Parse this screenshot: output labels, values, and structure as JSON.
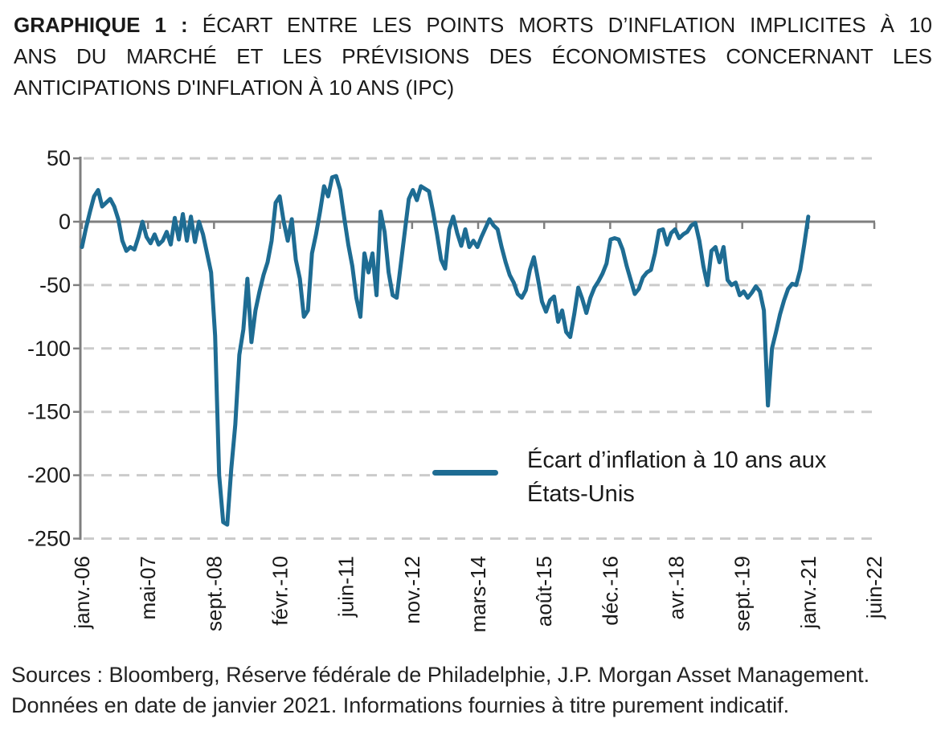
{
  "title": {
    "prefix": "GRAPHIQUE 1 :",
    "line1_rest": "ÉCART ENTRE LES POINTS MORTS D’INFLATION IMPLICITES À 10",
    "line2": "ANS DU MARCHÉ ET LES PRÉVISIONS DES ÉCONOMISTES CONCERNANT LES",
    "line3": "ANTICIPATIONS D'INFLATION À 10 ANS (IPC)"
  },
  "legend": {
    "label": "Écart d’inflation à 10 ans aux États-Unis"
  },
  "footer": {
    "line1": "Sources : Bloomberg, Réserve fédérale de Philadelphie, J.P. Morgan Asset Management.",
    "line2": "Données en date de janvier 2021. Informations fournies à titre purement indicatif."
  },
  "colors": {
    "line": "#1E6C93",
    "axis": "#7F7F7F",
    "gridline": "#CBCBCB",
    "text": "#1A1A1A"
  },
  "chart_data": {
    "type": "line",
    "title": "GRAPHIQUE 1 : Écart entre les points morts d’inflation implicites à 10 ans du marché et les prévisions des économistes concernant les anticipations d'inflation à 10 ans (IPC)",
    "series_name": "Écart d’inflation à 10 ans aux États-Unis",
    "x_start": "2006-01",
    "x_end": "2021-01",
    "x_frequency": "monthly",
    "x_tick_labels": [
      "janv.-06",
      "mai-07",
      "sept.-08",
      "févr.-10",
      "juin-11",
      "nov.-12",
      "mars-14",
      "août-15",
      "déc.-16",
      "avr.-18",
      "sept.-19",
      "janv.-21",
      "juin-22"
    ],
    "y_ticks": [
      50,
      0,
      -50,
      -100,
      -150,
      -200,
      -250
    ],
    "ylim": [
      -250,
      50
    ],
    "grid": "horizontal dashed, zero line solid",
    "legend_position": "inside lower-right",
    "values": [
      -20,
      -5,
      8,
      20,
      25,
      12,
      15,
      18,
      12,
      2,
      -15,
      -23,
      -20,
      -22,
      -12,
      0,
      -12,
      -17,
      -10,
      -18,
      -15,
      -8,
      -18,
      3,
      -14,
      6,
      -15,
      4,
      -16,
      0,
      -10,
      -25,
      -40,
      -90,
      -200,
      -237,
      -239,
      -195,
      -160,
      -105,
      -85,
      -45,
      -95,
      -70,
      -55,
      -42,
      -32,
      -15,
      15,
      20,
      0,
      -15,
      2,
      -30,
      -45,
      -75,
      -70,
      -25,
      -10,
      8,
      28,
      20,
      35,
      36,
      25,
      3,
      -18,
      -35,
      -60,
      -75,
      -25,
      -40,
      -25,
      -58,
      8,
      -8,
      -40,
      -58,
      -60,
      -34,
      -8,
      18,
      25,
      17,
      28,
      26,
      24,
      8,
      -10,
      -30,
      -37,
      -6,
      4,
      -9,
      -19,
      -6,
      -20,
      -15,
      -20,
      -12,
      -5,
      2,
      -3,
      -6,
      -20,
      -32,
      -42,
      -48,
      -57,
      -60,
      -54,
      -38,
      -28,
      -45,
      -63,
      -71,
      -62,
      -59,
      -79,
      -70,
      -87,
      -91,
      -73,
      -52,
      -61,
      -72,
      -60,
      -52,
      -47,
      -41,
      -33,
      -14,
      -13,
      -14,
      -22,
      -35,
      -46,
      -57,
      -53,
      -44,
      -40,
      -38,
      -25,
      -7,
      -6,
      -18,
      -9,
      -6,
      -13,
      -10,
      -8,
      -3,
      -1,
      -15,
      -35,
      -50,
      -23,
      -20,
      -32,
      -20,
      -46,
      -50,
      -48,
      -58,
      -55,
      -60,
      -56,
      -51,
      -55,
      -70,
      -145,
      -100,
      -87,
      -73,
      -62,
      -53,
      -49,
      -50,
      -38,
      -18,
      4
    ]
  }
}
